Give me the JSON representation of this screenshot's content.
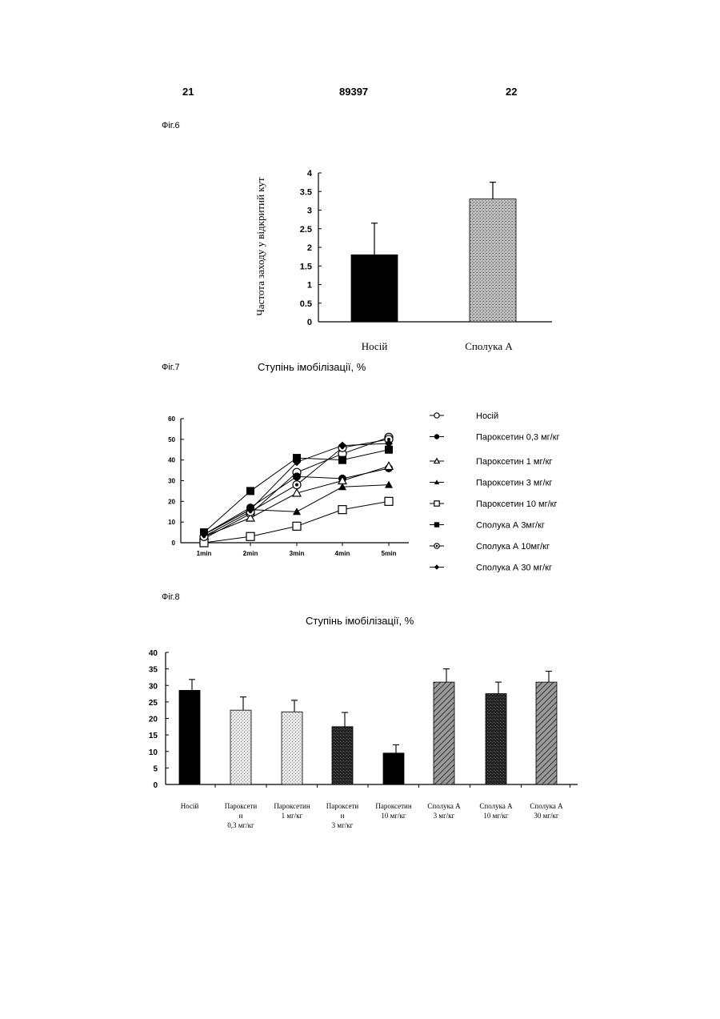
{
  "header": {
    "left_page": "21",
    "doc_number": "89397",
    "right_page": "22"
  },
  "figures": {
    "fig6": {
      "label": "Фіг.6"
    },
    "fig7": {
      "label": "Фіг.7",
      "title": "Ступінь імобілізації, %"
    },
    "fig8": {
      "label": "Фіг.8",
      "title": "Ступінь імобілізації, %"
    }
  },
  "chart_data": [
    {
      "type": "bar",
      "ylabel": "Частота заходу у відкритий кут",
      "categories": [
        "Носій",
        "Сполука А"
      ],
      "values": [
        1.8,
        3.3
      ],
      "errors": [
        0.85,
        0.45
      ],
      "ylim": [
        0,
        4
      ],
      "yticks": [
        "0",
        "0.5",
        "1",
        "1.5",
        "2",
        "2.5",
        "3",
        "3.5",
        "4"
      ],
      "fills": [
        "solid",
        "stipple"
      ]
    },
    {
      "type": "line",
      "x": [
        "1min",
        "2min",
        "3min",
        "4min",
        "5min"
      ],
      "ylim": [
        0,
        60
      ],
      "yticks": [
        "0",
        "10",
        "20",
        "30",
        "40",
        "50",
        "60"
      ],
      "legend_position": "right",
      "series": [
        {
          "name": "Носій",
          "marker": "circle-open",
          "values": [
            2,
            14,
            34,
            43,
            51
          ]
        },
        {
          "name": "Пароксетин 0,3 мг/кг",
          "marker": "circle-filled",
          "values": [
            4,
            17,
            32,
            31,
            36
          ]
        },
        {
          "name": "Пароксетин 1 мг/кг",
          "marker": "triangle-open",
          "values": [
            3,
            12,
            24,
            30,
            37
          ]
        },
        {
          "name": "Пароксетин 3 мг/кг",
          "marker": "triangle-filled",
          "values": [
            4,
            16,
            15,
            27,
            28
          ]
        },
        {
          "name": "Пароксетин 10 мг/кг",
          "marker": "square-open",
          "values": [
            0,
            3,
            8,
            16,
            20
          ]
        },
        {
          "name": "Сполука А 3мг/кг",
          "marker": "square-filled",
          "values": [
            5,
            25,
            41,
            40,
            45
          ]
        },
        {
          "name": "Сполука А 10мг/кг",
          "marker": "circle-dot",
          "values": [
            3,
            15,
            28,
            46,
            50
          ]
        },
        {
          "name": "Сполука А  30 мг/кг",
          "marker": "diamond-filled",
          "values": [
            4,
            16,
            39,
            47,
            48
          ]
        }
      ]
    },
    {
      "type": "bar",
      "categories": [
        [
          "Носій"
        ],
        [
          "Пароксети",
          "н",
          "0,3 мг/кг"
        ],
        [
          "Пароксетин",
          "1 мг/кг"
        ],
        [
          "Пароксети",
          "н",
          "3 мг/кг"
        ],
        [
          "Пароксетин",
          "10 мг/кг"
        ],
        [
          "Сполука А",
          "3 мг/кг"
        ],
        [
          "Сполука А",
          "10 мг/кг"
        ],
        [
          "Сполука А",
          "30 мг/кг"
        ]
      ],
      "values": [
        28.5,
        22.5,
        22,
        17.5,
        9.5,
        31,
        27.5,
        31
      ],
      "errors": [
        3.3,
        4,
        3.5,
        4.3,
        2.5,
        4,
        3.5,
        3.3
      ],
      "ylim": [
        0,
        40
      ],
      "yticks": [
        "0",
        "5",
        "10",
        "15",
        "20",
        "25",
        "30",
        "35",
        "40"
      ],
      "fills": [
        "solid",
        "light",
        "light",
        "dark",
        "solid",
        "hatch",
        "dark",
        "hatch"
      ]
    }
  ]
}
